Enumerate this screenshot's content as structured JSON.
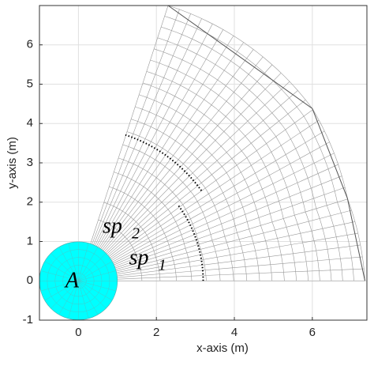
{
  "chart_data": {
    "type": "mesh",
    "xlabel": "x-axis (m)",
    "ylabel": "y-axis (m)",
    "xlim": [
      -1,
      7.4
    ],
    "ylim": [
      -1,
      7
    ],
    "xticks": [
      0,
      2,
      4,
      6
    ],
    "yticks": [
      -1,
      0,
      1,
      2,
      3,
      4,
      5,
      6
    ],
    "grid": true,
    "disk": {
      "x": 0,
      "y": 0,
      "radius": 1,
      "color": "#00ffff",
      "label": "A"
    },
    "boundary": {
      "x": [
        7.35,
        6.9,
        6.0,
        2.3
      ],
      "y": [
        0,
        2.1,
        4.38,
        7.0
      ]
    },
    "arcs": [
      {
        "label": "sp",
        "subscript": "1",
        "radius": 3.2,
        "angles": [
          0,
          37
        ]
      },
      {
        "label": "sp",
        "subscript": "2",
        "radius": 3.9,
        "angles": [
          36,
          72
        ]
      }
    ]
  }
}
